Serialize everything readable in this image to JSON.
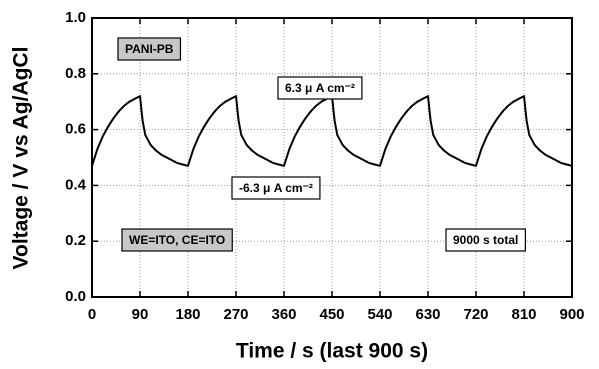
{
  "chart_data": {
    "type": "line",
    "xlabel": "Time / s (last 900 s)",
    "ylabel": "Voltage / V vs  Ag/AgCl",
    "annotations": [
      "PANI-PB",
      "6.3 μ A cm⁻²",
      "-6.3 μ A cm⁻²",
      "WE=ITO, CE=ITO",
      "9000 s total"
    ],
    "xlim": [
      0,
      900
    ],
    "xticks": [
      0,
      90,
      180,
      270,
      360,
      450,
      540,
      630,
      720,
      810,
      900
    ],
    "ylim": [
      0,
      1
    ],
    "yticks": [
      {
        "value": 0,
        "label": "0.0"
      },
      0.2,
      0.4,
      0.6,
      0.8,
      {
        "value": 1,
        "label": "1.0"
      }
    ],
    "grid": true,
    "series": [
      {
        "color": "#000000",
        "x": [
          0,
          10,
          20,
          30,
          40,
          50,
          60,
          70,
          80,
          90,
          95,
          100,
          110,
          120,
          130,
          140,
          150,
          160,
          170,
          180,
          190,
          200,
          210,
          220,
          230,
          240,
          250,
          260,
          270,
          275,
          280,
          290,
          300,
          310,
          320,
          330,
          340,
          350,
          360,
          370,
          380,
          390,
          400,
          410,
          420,
          430,
          440,
          450,
          455,
          460,
          470,
          480,
          490,
          500,
          510,
          520,
          530,
          540,
          550,
          560,
          570,
          580,
          590,
          600,
          610,
          620,
          630,
          635,
          640,
          650,
          660,
          670,
          680,
          690,
          700,
          710,
          720,
          730,
          740,
          750,
          760,
          770,
          780,
          790,
          800,
          810,
          815,
          820,
          830,
          840,
          850,
          860,
          870,
          880,
          890,
          900
        ],
        "values": [
          0.47,
          0.53,
          0.575,
          0.61,
          0.64,
          0.665,
          0.685,
          0.7,
          0.71,
          0.72,
          0.63,
          0.58,
          0.545,
          0.525,
          0.51,
          0.5,
          0.49,
          0.48,
          0.475,
          0.47,
          0.53,
          0.575,
          0.61,
          0.64,
          0.665,
          0.685,
          0.7,
          0.71,
          0.72,
          0.63,
          0.58,
          0.545,
          0.525,
          0.51,
          0.5,
          0.49,
          0.48,
          0.475,
          0.47,
          0.53,
          0.575,
          0.61,
          0.64,
          0.665,
          0.685,
          0.7,
          0.71,
          0.72,
          0.63,
          0.58,
          0.545,
          0.525,
          0.51,
          0.5,
          0.49,
          0.48,
          0.475,
          0.47,
          0.53,
          0.575,
          0.61,
          0.64,
          0.665,
          0.685,
          0.7,
          0.71,
          0.72,
          0.63,
          0.58,
          0.545,
          0.525,
          0.51,
          0.5,
          0.49,
          0.48,
          0.475,
          0.47,
          0.53,
          0.575,
          0.61,
          0.64,
          0.665,
          0.685,
          0.7,
          0.71,
          0.72,
          0.63,
          0.58,
          0.545,
          0.525,
          0.51,
          0.5,
          0.49,
          0.48,
          0.475,
          0.47
        ]
      }
    ]
  }
}
